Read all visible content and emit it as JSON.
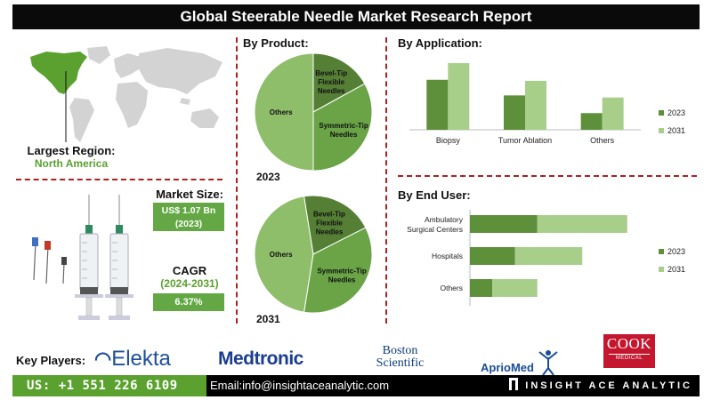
{
  "header": {
    "title": "Global Steerable Needle Market Research Report"
  },
  "region": {
    "label": "Largest Region:",
    "value": "North America"
  },
  "market_size": {
    "label": "Market Size:",
    "value": "US$ 1.07 Bn",
    "year": "(2023)"
  },
  "cagr": {
    "label": "CAGR",
    "period": "(2024-2031)",
    "value": "6.37%"
  },
  "colors": {
    "dark_green": "#5e8f3b",
    "mid_green": "#7aa551",
    "light_green": "#a8cf8a",
    "accent_green": "#63a845",
    "divider_red": "#b02020"
  },
  "chart_data": [
    {
      "id": "by_product_2023",
      "type": "pie",
      "title": "By Product:",
      "year_label": "2023",
      "slices": [
        {
          "label": "Others",
          "value": 50,
          "color": "#8fbe6b"
        },
        {
          "label": "Bevel-Tip Flexible Needles",
          "value": 17,
          "color": "#557f35"
        },
        {
          "label": "Symmetric-Tip Needles",
          "value": 33,
          "color": "#6aa447"
        }
      ]
    },
    {
      "id": "by_product_2031",
      "type": "pie",
      "title": "",
      "year_label": "2031",
      "slices": [
        {
          "label": "Others",
          "value": 45,
          "color": "#8fbe6b"
        },
        {
          "label": "Bevel-Tip Flexible Needles",
          "value": 20,
          "color": "#557f35"
        },
        {
          "label": "Symmetric-Tip Needles",
          "value": 35,
          "color": "#6aa447"
        }
      ]
    },
    {
      "id": "by_application",
      "type": "bar",
      "title": "By Application:",
      "categories": [
        "Biopsy",
        "Tumor Ablation",
        "Others"
      ],
      "series": [
        {
          "name": "2023",
          "values": [
            48,
            33,
            16
          ],
          "color": "#5e8f3b"
        },
        {
          "name": "2031",
          "values": [
            64,
            47,
            31
          ],
          "color": "#a8cf8a"
        }
      ],
      "ylim": [
        0,
        70
      ],
      "legend": "right"
    },
    {
      "id": "by_end_user",
      "type": "bar",
      "orientation": "horizontal",
      "stacked": true,
      "title": "By End User:",
      "categories": [
        "Ambulatory\nSurgical Centers",
        "Hospitals",
        "Others"
      ],
      "series": [
        {
          "name": "2023",
          "values": [
            30,
            20,
            10
          ],
          "color": "#5e8f3b"
        },
        {
          "name": "2031",
          "values": [
            40,
            30,
            20
          ],
          "color": "#a8cf8a"
        }
      ],
      "xlim": [
        0,
        80
      ],
      "legend": "right"
    }
  ],
  "key_players": {
    "label": "Key Players:",
    "names": [
      "Elekta",
      "Medtronic",
      "Boston",
      "Scientific",
      "AprioMed",
      "COOK",
      "MEDICAL"
    ]
  },
  "footer": {
    "phone": "US: +1 551 226 6109",
    "email": "Email:info@insightaceanalytic.com",
    "brand": "INSIGHT ACE ANALYTIC"
  }
}
